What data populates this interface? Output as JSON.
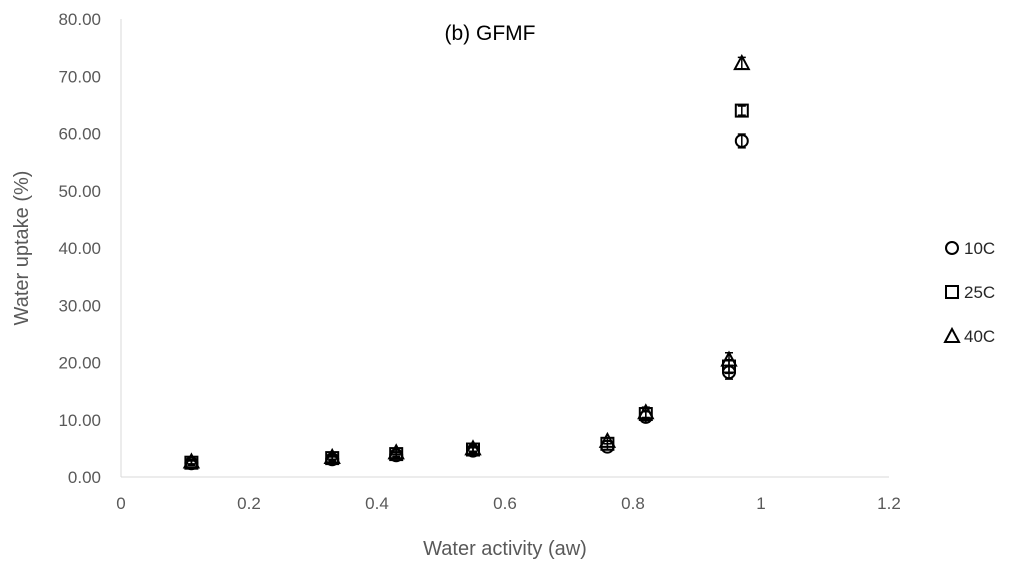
{
  "chart_data": {
    "type": "scatter",
    "title": "(b) GFMF",
    "xlabel": "Water activity (aw)",
    "ylabel": "Water uptake (%)",
    "xlim": [
      0,
      1.2
    ],
    "ylim": [
      0,
      80
    ],
    "x_ticks": [
      "0",
      "0.2",
      "0.4",
      "0.6",
      "0.8",
      "1",
      "1.2"
    ],
    "y_ticks": [
      "0.00",
      "10.00",
      "20.00",
      "30.00",
      "40.00",
      "50.00",
      "60.00",
      "70.00",
      "80.00"
    ],
    "grid": false,
    "legend_position": "right",
    "series": [
      {
        "name": "10C",
        "marker": "circle",
        "x": [
          0.11,
          0.33,
          0.43,
          0.55,
          0.76,
          0.82,
          0.95,
          0.97
        ],
        "y": [
          2.4,
          3.1,
          3.8,
          4.6,
          5.3,
          10.5,
          18.3,
          58.7
        ],
        "err": [
          0.4,
          0.4,
          0.4,
          0.5,
          0.5,
          0.9,
          1.2,
          1.2
        ]
      },
      {
        "name": "25C",
        "marker": "square",
        "x": [
          0.11,
          0.33,
          0.43,
          0.55,
          0.76,
          0.82,
          0.95,
          0.97
        ],
        "y": [
          2.5,
          3.3,
          4.0,
          4.8,
          5.8,
          11.0,
          19.3,
          64.0
        ],
        "err": [
          0.4,
          0.4,
          0.4,
          0.5,
          0.5,
          0.9,
          1.2,
          0.8
        ]
      },
      {
        "name": "40C",
        "marker": "triangle",
        "x": [
          0.11,
          0.33,
          0.43,
          0.55,
          0.76,
          0.82,
          0.95,
          0.97
        ],
        "y": [
          2.7,
          3.5,
          4.3,
          5.0,
          6.3,
          11.3,
          20.5,
          72.3
        ],
        "err": [
          0.4,
          0.4,
          0.4,
          0.5,
          0.5,
          0.9,
          1.2,
          1.0
        ]
      }
    ]
  }
}
